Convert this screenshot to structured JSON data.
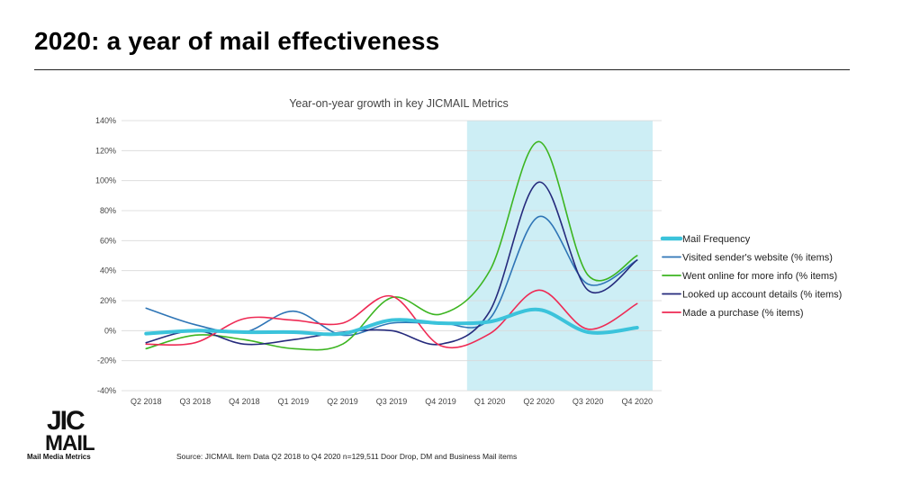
{
  "slide": {
    "title": "2020: a year of mail effectiveness",
    "source": "Source: JICMAIL Item Data Q2 2018 to Q4 2020 n=129,511 Door Drop, DM and Business Mail items"
  },
  "logo": {
    "wordmark": "JIC MAIL",
    "tagline": "Mail Media Metrics"
  },
  "chart_data": {
    "type": "line",
    "title": "Year-on-year growth in key JICMAIL Metrics",
    "xlabel": "",
    "ylabel": "",
    "categories": [
      "Q2 2018",
      "Q3 2018",
      "Q4 2018",
      "Q1 2019",
      "Q2 2019",
      "Q3 2019",
      "Q4 2019",
      "Q1 2020",
      "Q2 2020",
      "Q3 2020",
      "Q4 2020"
    ],
    "ylim": [
      -40,
      140
    ],
    "yticks": [
      -40,
      -20,
      0,
      20,
      40,
      60,
      80,
      100,
      120,
      140
    ],
    "ytick_labels": [
      "-40%",
      "-20%",
      "0%",
      "20%",
      "40%",
      "60%",
      "80%",
      "100%",
      "120%",
      "140%"
    ],
    "grid": true,
    "legend_position": "right",
    "highlight": {
      "from": "Q1 2020",
      "to": "Q4 2020",
      "color": "#cdeef5"
    },
    "series": [
      {
        "name": "Mail Frequency",
        "color": "#3bc3db",
        "width": 4,
        "values": [
          -2,
          0,
          -1,
          -1,
          -2,
          7,
          5,
          6,
          14,
          -1,
          2
        ]
      },
      {
        "name": "Visited sender's website (% items)",
        "color": "#2e75b6",
        "width": 1.6,
        "values": [
          15,
          4,
          -1,
          13,
          -3,
          5,
          5,
          8,
          76,
          31,
          47
        ]
      },
      {
        "name": "Went online for more info (% items)",
        "color": "#3cb521",
        "width": 1.6,
        "values": [
          -12,
          -3,
          -6,
          -12,
          -9,
          22,
          11,
          40,
          126,
          37,
          50
        ]
      },
      {
        "name": "Looked up account details (% items)",
        "color": "#252a7c",
        "width": 1.6,
        "values": [
          -8,
          0,
          -9,
          -6,
          -1,
          0,
          -9,
          13,
          99,
          27,
          47
        ]
      },
      {
        "name": "Made a purchase (% items)",
        "color": "#ee2a54",
        "width": 1.6,
        "values": [
          -9,
          -8,
          8,
          7,
          5,
          23,
          -10,
          -2,
          27,
          1,
          18
        ]
      }
    ]
  }
}
